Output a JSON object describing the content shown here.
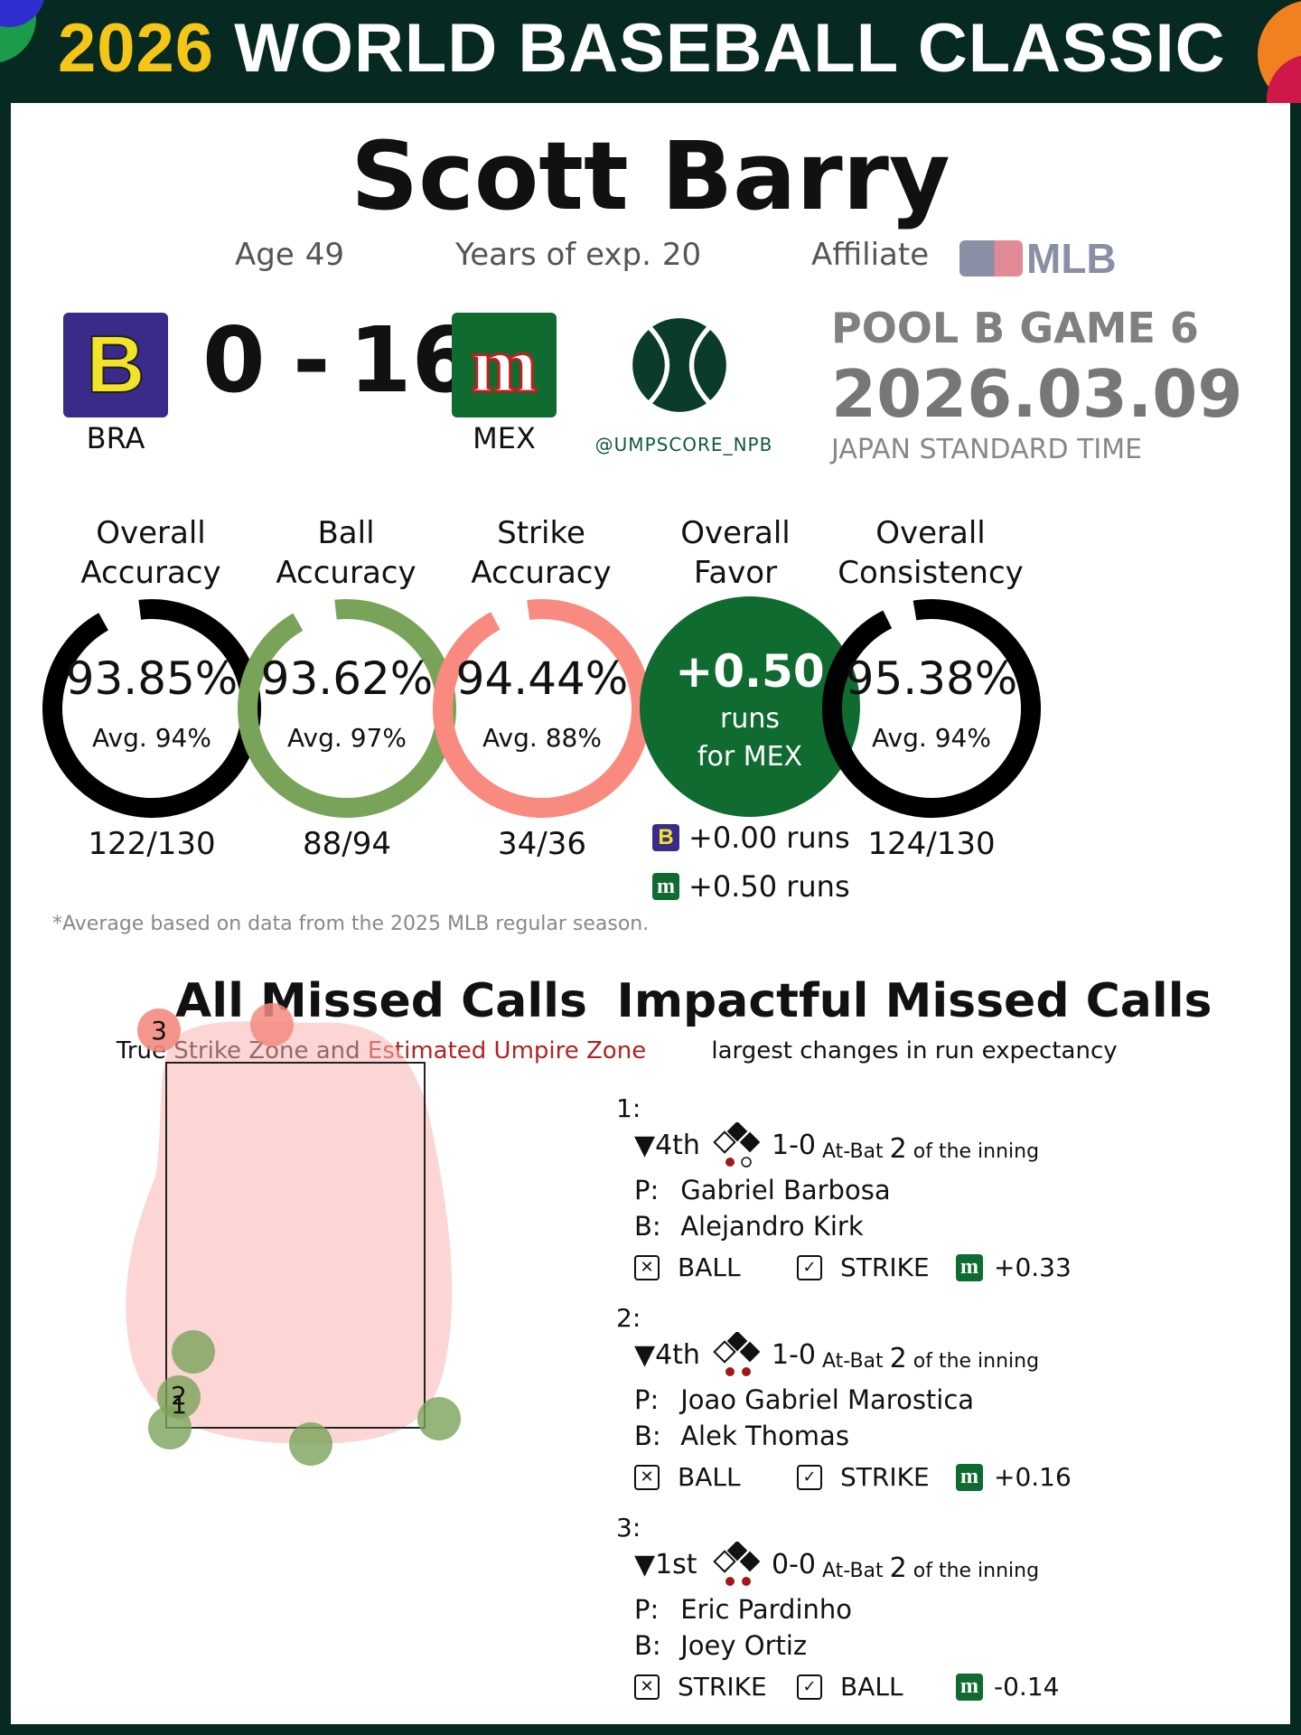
{
  "header": {
    "year": "2026",
    "title": "WORLD BASEBALL CLASSIC"
  },
  "umpire": {
    "name": "Scott Barry",
    "age_label": "Age",
    "age": "49",
    "exp_label": "Years of exp.",
    "exp": "20",
    "affiliate_label": "Affiliate",
    "affiliate": "MLB"
  },
  "game": {
    "away": {
      "abbr": "BRA",
      "score": "0",
      "logo_letter": "B",
      "color": "#3a2a8a"
    },
    "home": {
      "abbr": "MEX",
      "score": "16",
      "logo_letter": "m",
      "color": "#0f6b2f"
    },
    "separator": "-",
    "handle": "@UMPSCORE_NPB",
    "label": "POOL B GAME 6",
    "date": "2026.03.09",
    "timezone": "JAPAN STANDARD TIME"
  },
  "stats": {
    "overall_accuracy": {
      "title1": "Overall",
      "title2": "Accuracy",
      "value": "93.85%",
      "avg": "Avg. 94%",
      "count": "122/130",
      "fraction": 0.9385,
      "color": "#000000"
    },
    "ball_accuracy": {
      "title1": "Ball",
      "title2": "Accuracy",
      "value": "93.62%",
      "avg": "Avg. 97%",
      "count": "88/94",
      "fraction": 0.9362,
      "color": "#7aa35a"
    },
    "strike_accuracy": {
      "title1": "Strike",
      "title2": "Accuracy",
      "value": "94.44%",
      "avg": "Avg. 88%",
      "count": "34/36",
      "fraction": 0.9444,
      "color": "#f98a80"
    },
    "overall_favor": {
      "title1": "Overall",
      "title2": "Favor",
      "value": "+0.50",
      "unit": "runs",
      "for": "for MEX",
      "color": "#0f6b2f",
      "away_runs": "+0.00 runs",
      "home_runs": "+0.50 runs"
    },
    "overall_consistency": {
      "title1": "Overall",
      "title2": "Consistency",
      "value": "95.38%",
      "avg": "Avg. 94%",
      "count": "124/130",
      "fraction": 0.9538,
      "color": "#000000"
    }
  },
  "footnote": "*Average based on data from the 2025 MLB regular season.",
  "missed": {
    "title": "All Missed Calls",
    "subtitle_a": "True Strike Zone and ",
    "subtitle_b": "Estimated Umpire Zone",
    "labels": {
      "a": "3",
      "b": "2",
      "c": "1"
    }
  },
  "impactful": {
    "title": "Impactful Missed Calls",
    "subtitle": "largest changes in run expectancy",
    "calls": [
      {
        "num": "1:",
        "inning": "▼4th",
        "count": "1-0",
        "atbat_pre": "At-Bat",
        "atbat": "2",
        "atbat_post": "of the inning",
        "p_label": "P:",
        "pitcher": "Gabriel Barbosa",
        "b_label": "B:",
        "batter": "Alejandro Kirk",
        "call": "BALL",
        "correct": "STRIKE",
        "delta": "+0.33"
      },
      {
        "num": "2:",
        "inning": "▼4th",
        "count": "1-0",
        "atbat_pre": "At-Bat",
        "atbat": "2",
        "atbat_post": "of the inning",
        "p_label": "P:",
        "pitcher": "Joao Gabriel Marostica",
        "b_label": "B:",
        "batter": "Alek Thomas",
        "call": "BALL",
        "correct": "STRIKE",
        "delta": "+0.16"
      },
      {
        "num": "3:",
        "inning": "▼1st",
        "count": "0-0",
        "atbat_pre": "At-Bat",
        "atbat": "2",
        "atbat_post": "of the inning",
        "p_label": "P:",
        "pitcher": "Eric Pardinho",
        "b_label": "B:",
        "batter": "Joey Ortiz",
        "call": "STRIKE",
        "correct": "BALL",
        "delta": "-0.14"
      }
    ]
  }
}
